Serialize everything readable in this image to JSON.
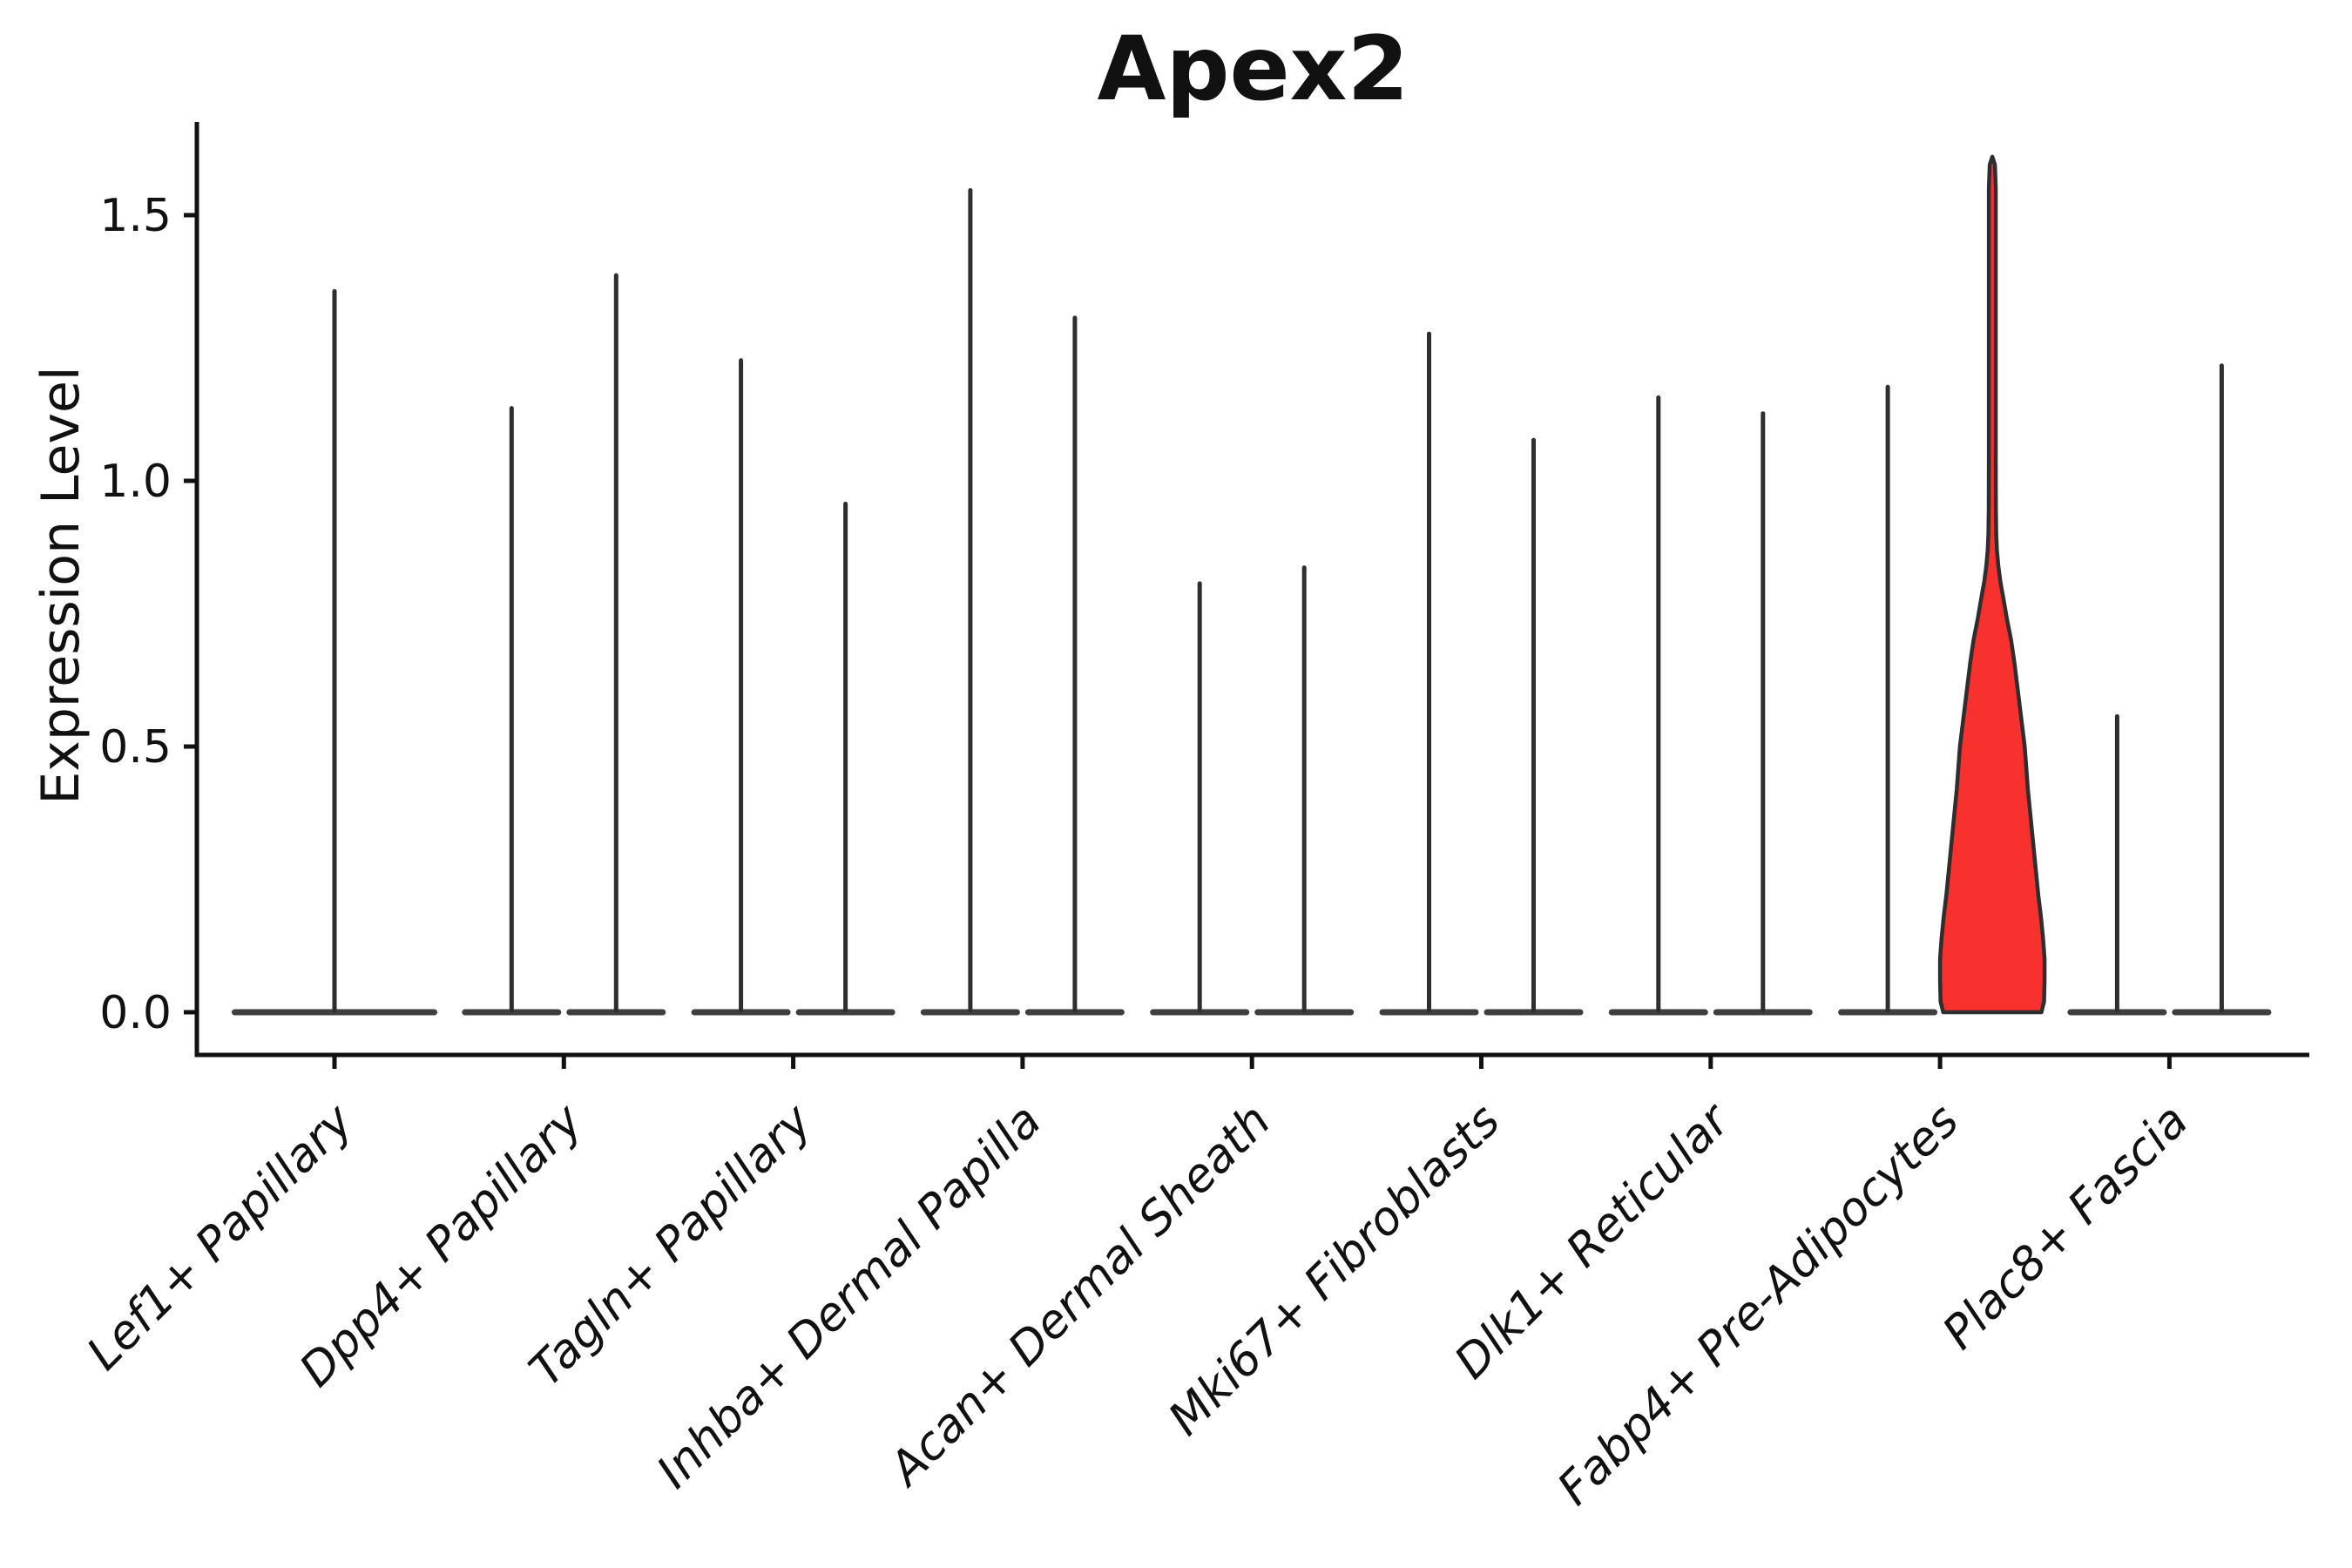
{
  "figure": {
    "background": "#ffffff"
  },
  "chart_data": {
    "type": "violin",
    "title": "Apex2",
    "xlabel": "",
    "ylabel": "Expression Level",
    "ylim": [
      -0.08,
      1.69
    ],
    "grid": false,
    "legend_position": "none",
    "yticks": [
      {
        "value": 0.0,
        "label": "0.0"
      },
      {
        "value": 0.5,
        "label": "0.5"
      },
      {
        "value": 1.0,
        "label": "1.0"
      },
      {
        "value": 1.5,
        "label": "1.5"
      }
    ],
    "colors": {
      "violin_stroke": "#2e2e2e",
      "highlight_fill": "#f8302e",
      "axis": "#111111",
      "text": "#111111"
    },
    "description": "Violin plot of Apex2 expression; most cells at 0 (flat violin bases) with thin density spikes up to each group's maximum; the Fabp4+ Pre-Adipocytes right violin is filled red with a wide low-expression body.",
    "categories": [
      {
        "label": "Lef1+ Papillary",
        "violins": [
          {
            "position": "center",
            "max": 1.36,
            "filled": false
          }
        ]
      },
      {
        "label": "Dpp4+ Papillary",
        "violins": [
          {
            "position": "left",
            "max": 1.14,
            "filled": false
          },
          {
            "position": "right",
            "max": 1.39,
            "filled": false
          }
        ]
      },
      {
        "label": "Tagln+ Papillary",
        "violins": [
          {
            "position": "left",
            "max": 1.23,
            "filled": false
          },
          {
            "position": "right",
            "max": 0.96,
            "filled": false
          }
        ]
      },
      {
        "label": "Inhba+ Dermal Papilla",
        "violins": [
          {
            "position": "left",
            "max": 1.55,
            "filled": false
          },
          {
            "position": "right",
            "max": 1.31,
            "filled": false
          }
        ]
      },
      {
        "label": "Acan+ Dermal Sheath",
        "violins": [
          {
            "position": "left",
            "max": 0.81,
            "filled": false
          },
          {
            "position": "right",
            "max": 0.84,
            "filled": false
          }
        ]
      },
      {
        "label": "Mki67+ Fibroblasts",
        "violins": [
          {
            "position": "left",
            "max": 1.28,
            "filled": false
          },
          {
            "position": "right",
            "max": 1.08,
            "filled": false
          }
        ]
      },
      {
        "label": "Dlk1+ Reticular",
        "violins": [
          {
            "position": "left",
            "max": 1.16,
            "filled": false
          },
          {
            "position": "right",
            "max": 1.13,
            "filled": false
          }
        ]
      },
      {
        "label": "Fabp4+ Pre-Adipocytes",
        "violins": [
          {
            "position": "left",
            "max": 1.18,
            "filled": false
          },
          {
            "position": "right",
            "max": 1.61,
            "filled": true,
            "fill": "#f8302e",
            "body_profile": [
              [
                0.0,
                0.94
              ],
              [
                0.02,
                0.99
              ],
              [
                0.06,
                1.0
              ],
              [
                0.1,
                1.0
              ],
              [
                0.14,
                0.97
              ],
              [
                0.18,
                0.93
              ],
              [
                0.22,
                0.88
              ],
              [
                0.26,
                0.84
              ],
              [
                0.3,
                0.8
              ],
              [
                0.34,
                0.76
              ],
              [
                0.38,
                0.72
              ],
              [
                0.42,
                0.68
              ],
              [
                0.46,
                0.65
              ],
              [
                0.5,
                0.62
              ],
              [
                0.54,
                0.57
              ],
              [
                0.58,
                0.52
              ],
              [
                0.62,
                0.47
              ],
              [
                0.66,
                0.42
              ],
              [
                0.7,
                0.36
              ],
              [
                0.74,
                0.28
              ],
              [
                0.78,
                0.21
              ],
              [
                0.81,
                0.155
              ],
              [
                0.84,
                0.115
              ],
              [
                0.87,
                0.088
              ],
              [
                0.9,
                0.075
              ],
              [
                0.95,
                0.068
              ],
              [
                1.05,
                0.066
              ],
              [
                1.2,
                0.066
              ],
              [
                1.4,
                0.066
              ],
              [
                1.55,
                0.066
              ],
              [
                1.595,
                0.05
              ],
              [
                1.61,
                0.0
              ]
            ]
          }
        ]
      },
      {
        "label": "Plac8+ Fascia",
        "violins": [
          {
            "position": "left",
            "max": 0.56,
            "filled": false
          },
          {
            "position": "right",
            "max": 1.22,
            "filled": false
          }
        ]
      }
    ]
  }
}
